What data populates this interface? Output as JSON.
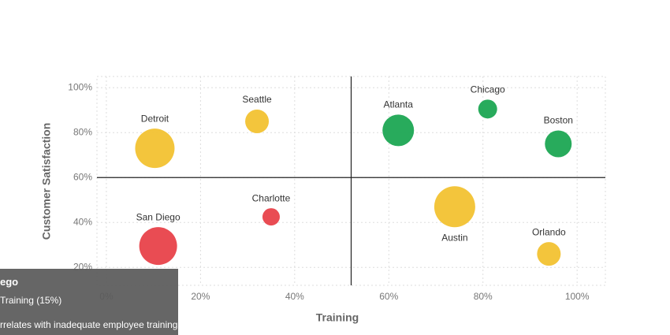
{
  "chart_data": {
    "type": "bubble",
    "x_label": "Training",
    "y_label": "Customer Satisfaction",
    "xlim": [
      -2,
      106
    ],
    "ylim": [
      12,
      105
    ],
    "xticks": [
      {
        "value": 0,
        "label": "0%"
      },
      {
        "value": 20,
        "label": "20%"
      },
      {
        "value": 40,
        "label": "40%"
      },
      {
        "value": 60,
        "label": "60%"
      },
      {
        "value": 80,
        "label": "80%"
      },
      {
        "value": 100,
        "label": "100%"
      }
    ],
    "yticks": [
      {
        "value": 20,
        "label": "20%"
      },
      {
        "value": 40,
        "label": "40%"
      },
      {
        "value": 60,
        "label": "60%"
      },
      {
        "value": 80,
        "label": "80%"
      },
      {
        "value": 100,
        "label": "100%"
      }
    ],
    "grid": true,
    "quadrant_x": 52,
    "quadrant_y": 60,
    "points": [
      {
        "name": "Detroit",
        "x": 10.3,
        "y": 73,
        "size": 25,
        "color": "#f2c232"
      },
      {
        "name": "Seattle",
        "x": 32,
        "y": 85,
        "size": 15,
        "color": "#f2c232"
      },
      {
        "name": "Atlanta",
        "x": 62,
        "y": 81,
        "size": 20,
        "color": "#1ca653"
      },
      {
        "name": "Chicago",
        "x": 81,
        "y": 90.5,
        "size": 12,
        "color": "#1ca653"
      },
      {
        "name": "Boston",
        "x": 96,
        "y": 75,
        "size": 17,
        "color": "#1ca653"
      },
      {
        "name": "Charlotte",
        "x": 35,
        "y": 42.5,
        "size": 11,
        "color": "#e8424a"
      },
      {
        "name": "San Diego",
        "x": 11,
        "y": 29.5,
        "size": 24,
        "color": "#e8424a"
      },
      {
        "name": "Austin",
        "x": 74,
        "y": 47,
        "size": 26,
        "color": "#f2c232"
      },
      {
        "name": "Orlando",
        "x": 94,
        "y": 26,
        "size": 15,
        "color": "#f2c232"
      }
    ]
  },
  "tooltip": {
    "title": "ego",
    "line1": "Training (15%)",
    "line2": "rrelates with inadequate employee training"
  }
}
